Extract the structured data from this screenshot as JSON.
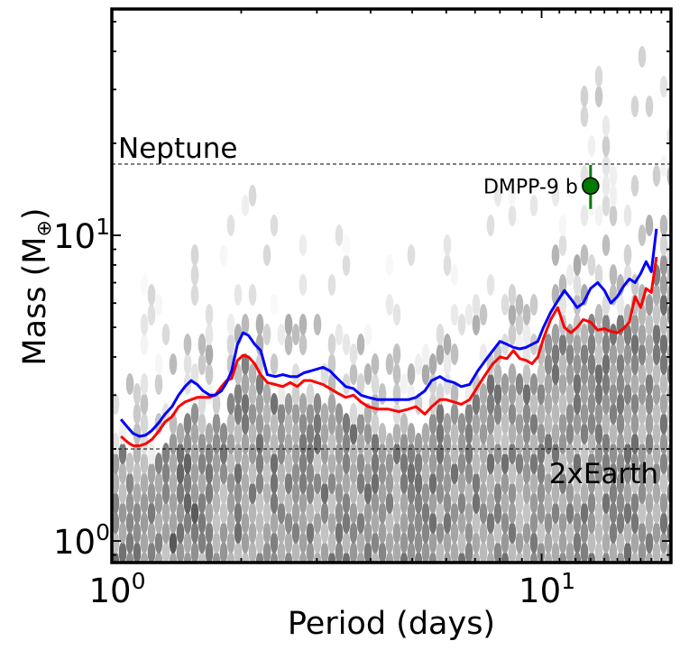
{
  "chart_data": {
    "type": "line",
    "title": "",
    "xlabel": "Period (days)",
    "ylabel_main": "Mass (M",
    "ylabel_sub": "⊕",
    "ylabel_close": ")",
    "xscale": "log",
    "yscale": "log",
    "xlim": [
      1.0,
      20.0
    ],
    "ylim": [
      0.85,
      55.0
    ],
    "x_ticks": [
      {
        "value": 1,
        "base": "10",
        "exp": "0"
      },
      {
        "value": 10,
        "base": "10",
        "exp": "1"
      }
    ],
    "y_ticks": [
      {
        "value": 1,
        "base": "10",
        "exp": "0"
      },
      {
        "value": 10,
        "base": "10",
        "exp": "1"
      }
    ],
    "reference_lines": [
      {
        "name": "neptune",
        "label": "Neptune",
        "value": 17.1,
        "label_position": "left"
      },
      {
        "name": "two-earth",
        "label": "2xEarth",
        "value": 2.0,
        "label_position": "bottom-right"
      }
    ],
    "planet": {
      "label": "DMPP-9 b",
      "period": 13.0,
      "mass": 14.5,
      "mass_lower": 12.2,
      "mass_upper": 17.0,
      "color": "#007a00"
    },
    "series": [
      {
        "name": "blue-limit",
        "color": "#0000ff",
        "x": [
          1.05,
          1.09,
          1.12,
          1.16,
          1.2,
          1.24,
          1.29,
          1.33,
          1.38,
          1.43,
          1.48,
          1.53,
          1.58,
          1.63,
          1.69,
          1.74,
          1.8,
          1.85,
          1.9,
          1.96,
          2.02,
          2.08,
          2.15,
          2.22,
          2.3,
          2.4,
          2.5,
          2.6,
          2.7,
          2.8,
          2.9,
          3.0,
          3.1,
          3.22,
          3.35,
          3.5,
          3.65,
          3.8,
          3.95,
          4.15,
          4.4,
          4.65,
          4.9,
          5.1,
          5.35,
          5.55,
          5.8,
          6.0,
          6.25,
          6.5,
          6.8,
          7.1,
          7.4,
          7.7,
          8.0,
          8.3,
          8.6,
          8.9,
          9.2,
          9.5,
          9.8,
          10.1,
          10.5,
          10.9,
          11.3,
          11.7,
          12.1,
          12.5,
          13.0,
          13.5,
          14.0,
          14.5,
          15.0,
          15.5,
          16.0,
          16.5,
          17.0,
          17.5,
          18.0,
          18.5
        ],
        "values": [
          2.5,
          2.35,
          2.25,
          2.2,
          2.22,
          2.3,
          2.45,
          2.6,
          2.75,
          3.0,
          3.2,
          3.35,
          3.25,
          3.1,
          3.0,
          3.0,
          3.1,
          3.3,
          3.6,
          4.4,
          4.8,
          4.7,
          4.4,
          4.2,
          3.5,
          3.45,
          3.5,
          3.45,
          3.45,
          3.55,
          3.6,
          3.65,
          3.7,
          3.6,
          3.4,
          3.2,
          3.15,
          3.0,
          2.95,
          2.9,
          2.9,
          2.9,
          2.9,
          2.95,
          3.1,
          3.35,
          3.45,
          3.35,
          3.3,
          3.2,
          3.25,
          3.6,
          3.9,
          4.2,
          4.5,
          4.4,
          4.3,
          4.25,
          4.3,
          4.4,
          4.5,
          5.0,
          5.6,
          6.1,
          6.6,
          6.2,
          5.8,
          6.0,
          6.7,
          7.0,
          6.6,
          6.0,
          6.3,
          6.8,
          7.2,
          7.0,
          7.5,
          8.2,
          7.6,
          10.5
        ]
      },
      {
        "name": "red-limit",
        "color": "#ff0000",
        "x": [
          1.05,
          1.09,
          1.12,
          1.16,
          1.2,
          1.24,
          1.29,
          1.33,
          1.38,
          1.43,
          1.48,
          1.53,
          1.58,
          1.63,
          1.69,
          1.74,
          1.8,
          1.85,
          1.9,
          1.96,
          2.02,
          2.08,
          2.15,
          2.22,
          2.3,
          2.4,
          2.5,
          2.6,
          2.7,
          2.8,
          2.9,
          3.0,
          3.1,
          3.22,
          3.35,
          3.5,
          3.65,
          3.8,
          3.95,
          4.15,
          4.4,
          4.65,
          4.9,
          5.1,
          5.35,
          5.55,
          5.8,
          6.0,
          6.25,
          6.5,
          6.8,
          7.1,
          7.4,
          7.7,
          8.0,
          8.3,
          8.6,
          8.9,
          9.2,
          9.5,
          9.8,
          10.1,
          10.5,
          10.9,
          11.3,
          11.7,
          12.1,
          12.5,
          13.0,
          13.5,
          14.0,
          14.5,
          15.0,
          15.5,
          16.0,
          16.5,
          17.0,
          17.5,
          18.0,
          18.5
        ],
        "values": [
          2.2,
          2.1,
          2.05,
          2.05,
          2.08,
          2.15,
          2.3,
          2.45,
          2.55,
          2.75,
          2.85,
          2.9,
          2.95,
          2.95,
          2.95,
          3.0,
          3.2,
          3.35,
          3.4,
          3.9,
          4.05,
          4.0,
          3.8,
          3.5,
          3.3,
          3.25,
          3.2,
          3.3,
          3.2,
          3.35,
          3.35,
          3.3,
          3.25,
          3.15,
          3.05,
          2.95,
          3.0,
          2.85,
          2.75,
          2.7,
          2.7,
          2.65,
          2.7,
          2.75,
          2.6,
          2.75,
          2.9,
          2.9,
          2.85,
          2.8,
          2.9,
          3.2,
          3.5,
          3.8,
          4.0,
          3.95,
          4.2,
          3.95,
          3.9,
          3.8,
          4.0,
          4.6,
          5.3,
          5.8,
          5.0,
          4.8,
          5.0,
          5.3,
          5.2,
          4.9,
          4.95,
          4.85,
          4.8,
          4.95,
          5.2,
          6.3,
          5.8,
          6.7,
          6.5,
          8.5
        ]
      }
    ]
  }
}
